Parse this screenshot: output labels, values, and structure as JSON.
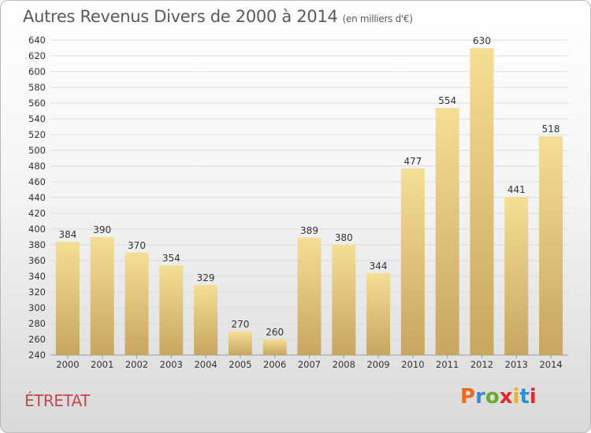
{
  "title": {
    "main": "Autres Revenus Divers de 2000 à 2014",
    "unit": "(en milliers d'€)"
  },
  "location": "ÉTRETAT",
  "logo": {
    "text": "Proxiti",
    "colors": [
      "#e86a1c",
      "#2f8fcf",
      "#6aaa2a",
      "#e2292b",
      "#f0b21c",
      "#2f8fcf",
      "#e2292b"
    ]
  },
  "colors": {
    "bar_top": "#f5de96",
    "bar_bottom": "#c7a660",
    "grid": "#dcdcdc",
    "axis_text": "#333333",
    "title": "#5a5a5a",
    "location": "#c8464e"
  },
  "chart_data": {
    "type": "bar",
    "categories": [
      "2000",
      "2001",
      "2002",
      "2003",
      "2004",
      "2005",
      "2006",
      "2007",
      "2008",
      "2009",
      "2010",
      "2011",
      "2012",
      "2013",
      "2014"
    ],
    "values": [
      384,
      390,
      370,
      354,
      329,
      270,
      260,
      389,
      380,
      344,
      477,
      554,
      630,
      441,
      518
    ],
    "title": "Autres Revenus Divers de 2000 à 2014",
    "subtitle": "(en milliers d'€)",
    "ylim": [
      240,
      640
    ],
    "yticks": [
      240,
      260,
      280,
      300,
      320,
      340,
      360,
      380,
      400,
      420,
      440,
      460,
      480,
      500,
      520,
      540,
      560,
      580,
      600,
      620,
      640
    ],
    "grid": true,
    "data_labels": true
  }
}
